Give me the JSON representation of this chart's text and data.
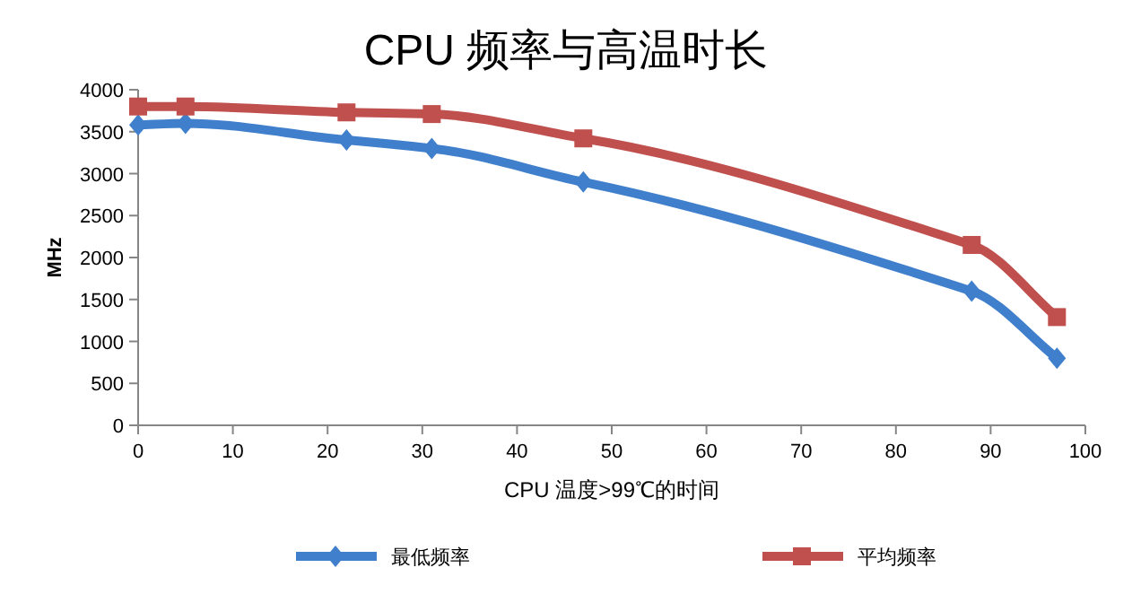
{
  "chart_data": {
    "type": "line",
    "title": "CPU 频率与高温时长",
    "xlabel": "CPU 温度>99℃的时间",
    "ylabel": "MHz",
    "xlim": [
      0,
      100
    ],
    "xticks": [
      0,
      10,
      20,
      30,
      40,
      50,
      60,
      70,
      80,
      90,
      100
    ],
    "ylim": [
      0,
      4000
    ],
    "yticks": [
      0,
      500,
      1000,
      1500,
      2000,
      2500,
      3000,
      3500,
      4000
    ],
    "grid": false,
    "legend": "bottom",
    "series": [
      {
        "name": "最低频率",
        "color": "#3f7fcc",
        "marker": "diamond",
        "x": [
          0,
          5,
          22,
          31,
          47,
          88,
          97
        ],
        "values": [
          3580,
          3600,
          3400,
          3300,
          2900,
          1600,
          800
        ]
      },
      {
        "name": "平均频率",
        "color": "#c0504d",
        "marker": "square",
        "x": [
          0,
          5,
          22,
          31,
          47,
          88,
          97
        ],
        "values": [
          3800,
          3800,
          3730,
          3710,
          3420,
          2150,
          1290
        ]
      }
    ]
  }
}
